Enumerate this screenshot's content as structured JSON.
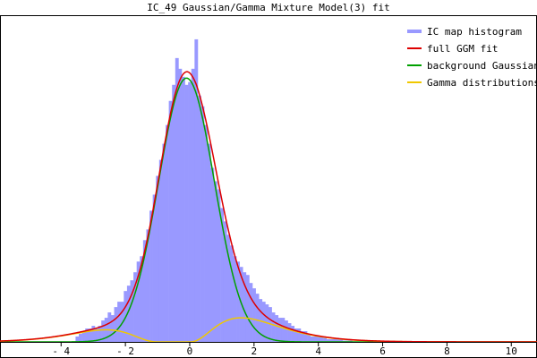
{
  "chart_data": {
    "type": "histogram+line",
    "title": "IC_49 Gaussian/Gamma Mixture Model(3) fit",
    "xlabel": "",
    "ylabel": "",
    "xlim": [
      -5.9,
      10.8
    ],
    "ylim": [
      0,
      1.22
    ],
    "x_ticks": [
      -4,
      -2,
      0,
      2,
      4,
      6,
      8,
      10
    ],
    "x_tick_labels": [
      "- 4",
      "- 2",
      "0",
      "2",
      "4",
      "6",
      "8",
      "10"
    ],
    "legend_position": "top-right",
    "legend": [
      {
        "label": "IC map histogram",
        "color": "#9999ff"
      },
      {
        "label": "full GGM fit",
        "color": "#dd0000"
      },
      {
        "label": "background Gaussian",
        "color": "#00a000"
      },
      {
        "label": "Gamma distributions",
        "color": "#f0c800"
      }
    ],
    "histogram": {
      "bin_width": 0.1,
      "bin_centers": [
        -3.5,
        -3.4,
        -3.3,
        -3.2,
        -3.1,
        -3.0,
        -2.9,
        -2.8,
        -2.7,
        -2.6,
        -2.5,
        -2.4,
        -2.3,
        -2.2,
        -2.1,
        -2.0,
        -1.9,
        -1.8,
        -1.7,
        -1.6,
        -1.5,
        -1.4,
        -1.3,
        -1.2,
        -1.1,
        -1.0,
        -0.9,
        -0.8,
        -0.7,
        -0.6,
        -0.5,
        -0.4,
        -0.3,
        -0.2,
        -0.1,
        0.0,
        0.1,
        0.2,
        0.3,
        0.4,
        0.5,
        0.6,
        0.7,
        0.8,
        0.9,
        1.0,
        1.1,
        1.2,
        1.3,
        1.4,
        1.5,
        1.6,
        1.7,
        1.8,
        1.9,
        2.0,
        2.1,
        2.2,
        2.3,
        2.4,
        2.5,
        2.6,
        2.7,
        2.8,
        2.9,
        3.0,
        3.1,
        3.2,
        3.3,
        3.4,
        3.5,
        3.6,
        3.7,
        3.8,
        3.9,
        4.0,
        4.1,
        4.2,
        4.3,
        4.4,
        4.5,
        4.6,
        4.7,
        4.8,
        4.9,
        5.0
      ],
      "counts": [
        0.02,
        0.03,
        0.04,
        0.05,
        0.05,
        0.06,
        0.05,
        0.06,
        0.08,
        0.09,
        0.11,
        0.1,
        0.13,
        0.15,
        0.15,
        0.19,
        0.21,
        0.23,
        0.26,
        0.3,
        0.32,
        0.38,
        0.42,
        0.49,
        0.55,
        0.62,
        0.68,
        0.74,
        0.81,
        0.9,
        0.96,
        1.06,
        1.02,
        0.99,
        0.96,
        0.97,
        1.02,
        1.13,
        0.92,
        0.88,
        0.81,
        0.74,
        0.65,
        0.6,
        0.57,
        0.5,
        0.45,
        0.4,
        0.36,
        0.32,
        0.3,
        0.28,
        0.26,
        0.25,
        0.22,
        0.2,
        0.18,
        0.16,
        0.15,
        0.14,
        0.13,
        0.11,
        0.1,
        0.09,
        0.09,
        0.08,
        0.07,
        0.06,
        0.05,
        0.05,
        0.04,
        0.04,
        0.03,
        0.02,
        0.02,
        0.02,
        0.02,
        0.015,
        0.01,
        0.01,
        0.01,
        0.01,
        0.01,
        0.005,
        0.005,
        0.005
      ]
    },
    "background_gaussian": {
      "amplitude": 0.985,
      "mean": -0.1,
      "sd": 0.87
    },
    "gamma_components": [
      {
        "side": "positive",
        "peak_x": 1.6,
        "peak_y": 0.09,
        "shape": 3.5,
        "scale": 0.64,
        "shift": 0.0
      },
      {
        "side": "negative",
        "peak_x": -2.6,
        "peak_y": 0.045,
        "shape": 4.0,
        "scale": 0.55,
        "shift": -1.0
      }
    ],
    "full_fit": "sum of background_gaussian and gamma_components (plus a broad tail)",
    "series_samples": {
      "full_ggm_fit": {
        "x": [
          -5.0,
          -4.0,
          -3.0,
          -2.5,
          -2.0,
          -1.5,
          -1.0,
          -0.5,
          0.0,
          0.5,
          1.0,
          1.5,
          2.0,
          2.5,
          3.0,
          4.0,
          5.0,
          6.0,
          8.0,
          10.0
        ],
        "y": [
          0.004,
          0.014,
          0.06,
          0.11,
          0.2,
          0.36,
          0.63,
          0.92,
          0.99,
          0.82,
          0.51,
          0.34,
          0.24,
          0.16,
          0.1,
          0.04,
          0.015,
          0.006,
          0.001,
          0.0
        ]
      },
      "background_gaussian": {
        "x": [
          -3.0,
          -2.0,
          -1.0,
          0.0,
          1.0,
          2.0,
          3.0
        ],
        "y": [
          0.0,
          0.07,
          0.55,
          0.98,
          0.49,
          0.05,
          0.0
        ]
      },
      "gamma_distributions": {
        "x": [
          -3.0,
          -2.5,
          -2.0,
          -1.5,
          -1.0,
          0.0,
          0.5,
          1.0,
          1.5,
          2.0,
          2.5,
          3.0,
          4.0,
          5.0
        ],
        "y": [
          0.03,
          0.045,
          0.035,
          0.01,
          0.0,
          0.0,
          0.02,
          0.07,
          0.09,
          0.085,
          0.06,
          0.035,
          0.008,
          0.001
        ]
      }
    }
  }
}
